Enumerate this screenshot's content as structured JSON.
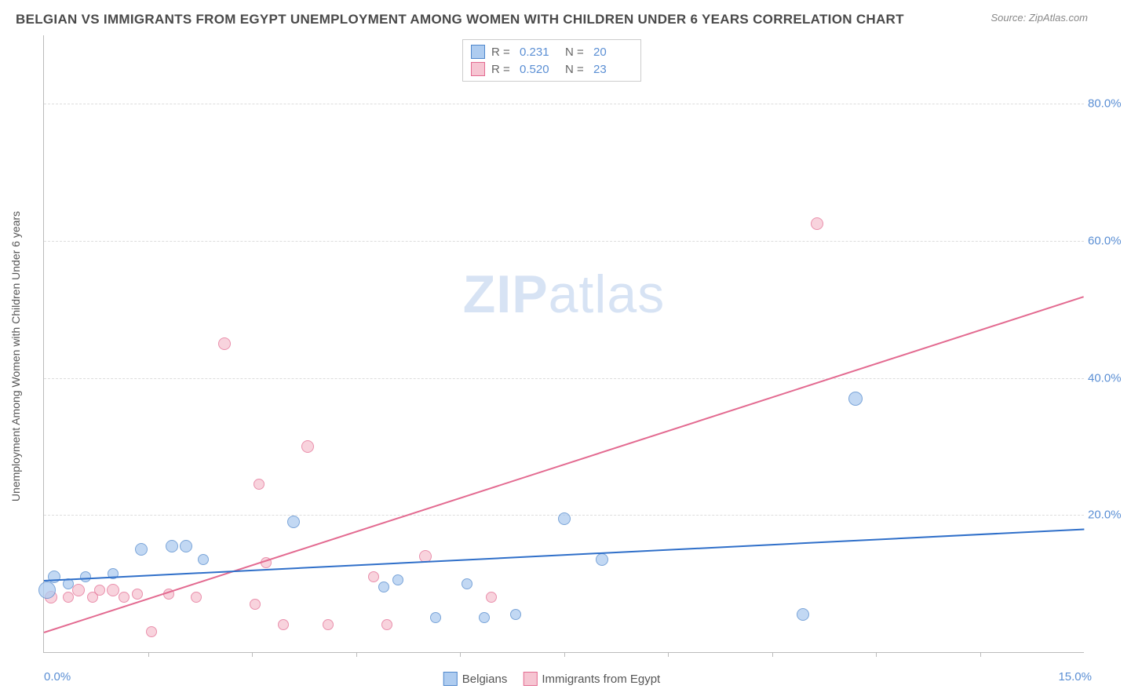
{
  "title": "BELGIAN VS IMMIGRANTS FROM EGYPT UNEMPLOYMENT AMONG WOMEN WITH CHILDREN UNDER 6 YEARS CORRELATION CHART",
  "source": "Source: ZipAtlas.com",
  "ylabel": "Unemployment Among Women with Children Under 6 years",
  "watermark_bold": "ZIP",
  "watermark_rest": "atlas",
  "colors": {
    "blue_fill": "#aeccf0",
    "blue_stroke": "#4f87cc",
    "pink_fill": "#f6c5d2",
    "pink_stroke": "#e36b91",
    "blue_line": "#2f6fc9",
    "pink_line": "#e36b91",
    "tick_text": "#5b8fd4"
  },
  "legend_top": [
    {
      "r_label": "R =",
      "r": "0.231",
      "n_label": "N =",
      "n": "20",
      "sw_fill": "#aeccf0",
      "sw_stroke": "#4f87cc"
    },
    {
      "r_label": "R =",
      "r": "0.520",
      "n_label": "N =",
      "n": "23",
      "sw_fill": "#f6c5d2",
      "sw_stroke": "#e36b91"
    }
  ],
  "legend_bottom": [
    {
      "label": "Belgians",
      "sw_fill": "#aeccf0",
      "sw_stroke": "#4f87cc"
    },
    {
      "label": "Immigrants from Egypt",
      "sw_fill": "#f6c5d2",
      "sw_stroke": "#e36b91"
    }
  ],
  "axes": {
    "xmin": 0.0,
    "xmax": 15.0,
    "ymin": 0.0,
    "ymax": 90.0,
    "yticks": [
      20.0,
      40.0,
      60.0,
      80.0
    ],
    "ytick_labels": [
      "20.0%",
      "40.0%",
      "60.0%",
      "80.0%"
    ],
    "xticks_minor": [
      1.5,
      3.0,
      4.5,
      6.0,
      7.5,
      9.0,
      10.5,
      12.0,
      13.5
    ],
    "xstart_label": "0.0%",
    "xend_label": "15.0%"
  },
  "series_blue": {
    "points": [
      {
        "x": 0.05,
        "y": 9.0,
        "r": 11
      },
      {
        "x": 0.15,
        "y": 11.0,
        "r": 8
      },
      {
        "x": 0.35,
        "y": 10.0,
        "r": 7
      },
      {
        "x": 0.6,
        "y": 11.0,
        "r": 7
      },
      {
        "x": 1.0,
        "y": 11.5,
        "r": 7
      },
      {
        "x": 1.4,
        "y": 15.0,
        "r": 8
      },
      {
        "x": 1.85,
        "y": 15.5,
        "r": 8
      },
      {
        "x": 2.05,
        "y": 15.5,
        "r": 8
      },
      {
        "x": 2.3,
        "y": 13.5,
        "r": 7
      },
      {
        "x": 3.6,
        "y": 19.0,
        "r": 8
      },
      {
        "x": 4.9,
        "y": 9.5,
        "r": 7
      },
      {
        "x": 5.1,
        "y": 10.5,
        "r": 7
      },
      {
        "x": 5.65,
        "y": 5.0,
        "r": 7
      },
      {
        "x": 6.1,
        "y": 10.0,
        "r": 7
      },
      {
        "x": 6.35,
        "y": 5.0,
        "r": 7
      },
      {
        "x": 6.8,
        "y": 5.5,
        "r": 7
      },
      {
        "x": 7.5,
        "y": 19.5,
        "r": 8
      },
      {
        "x": 8.05,
        "y": 13.5,
        "r": 8
      },
      {
        "x": 10.95,
        "y": 5.5,
        "r": 8
      },
      {
        "x": 11.7,
        "y": 37.0,
        "r": 9
      }
    ],
    "trend": {
      "x1": 0.0,
      "y1": 10.5,
      "x2": 15.0,
      "y2": 18.0
    }
  },
  "series_pink": {
    "points": [
      {
        "x": 0.1,
        "y": 8.0,
        "r": 8
      },
      {
        "x": 0.35,
        "y": 8.0,
        "r": 7
      },
      {
        "x": 0.5,
        "y": 9.0,
        "r": 8
      },
      {
        "x": 0.7,
        "y": 8.0,
        "r": 7
      },
      {
        "x": 0.8,
        "y": 9.0,
        "r": 7
      },
      {
        "x": 1.0,
        "y": 9.0,
        "r": 8
      },
      {
        "x": 1.15,
        "y": 8.0,
        "r": 7
      },
      {
        "x": 1.35,
        "y": 8.5,
        "r": 7
      },
      {
        "x": 1.55,
        "y": 3.0,
        "r": 7
      },
      {
        "x": 1.8,
        "y": 8.5,
        "r": 7
      },
      {
        "x": 2.2,
        "y": 8.0,
        "r": 7
      },
      {
        "x": 2.6,
        "y": 45.0,
        "r": 8
      },
      {
        "x": 3.05,
        "y": 7.0,
        "r": 7
      },
      {
        "x": 3.1,
        "y": 24.5,
        "r": 7
      },
      {
        "x": 3.2,
        "y": 13.0,
        "r": 7
      },
      {
        "x": 3.45,
        "y": 4.0,
        "r": 7
      },
      {
        "x": 3.8,
        "y": 30.0,
        "r": 8
      },
      {
        "x": 4.1,
        "y": 4.0,
        "r": 7
      },
      {
        "x": 4.75,
        "y": 11.0,
        "r": 7
      },
      {
        "x": 4.95,
        "y": 4.0,
        "r": 7
      },
      {
        "x": 5.5,
        "y": 14.0,
        "r": 8
      },
      {
        "x": 6.45,
        "y": 8.0,
        "r": 7
      },
      {
        "x": 11.15,
        "y": 62.5,
        "r": 8
      }
    ],
    "trend": {
      "x1": 0.0,
      "y1": 3.0,
      "x2": 15.0,
      "y2": 52.0
    }
  }
}
